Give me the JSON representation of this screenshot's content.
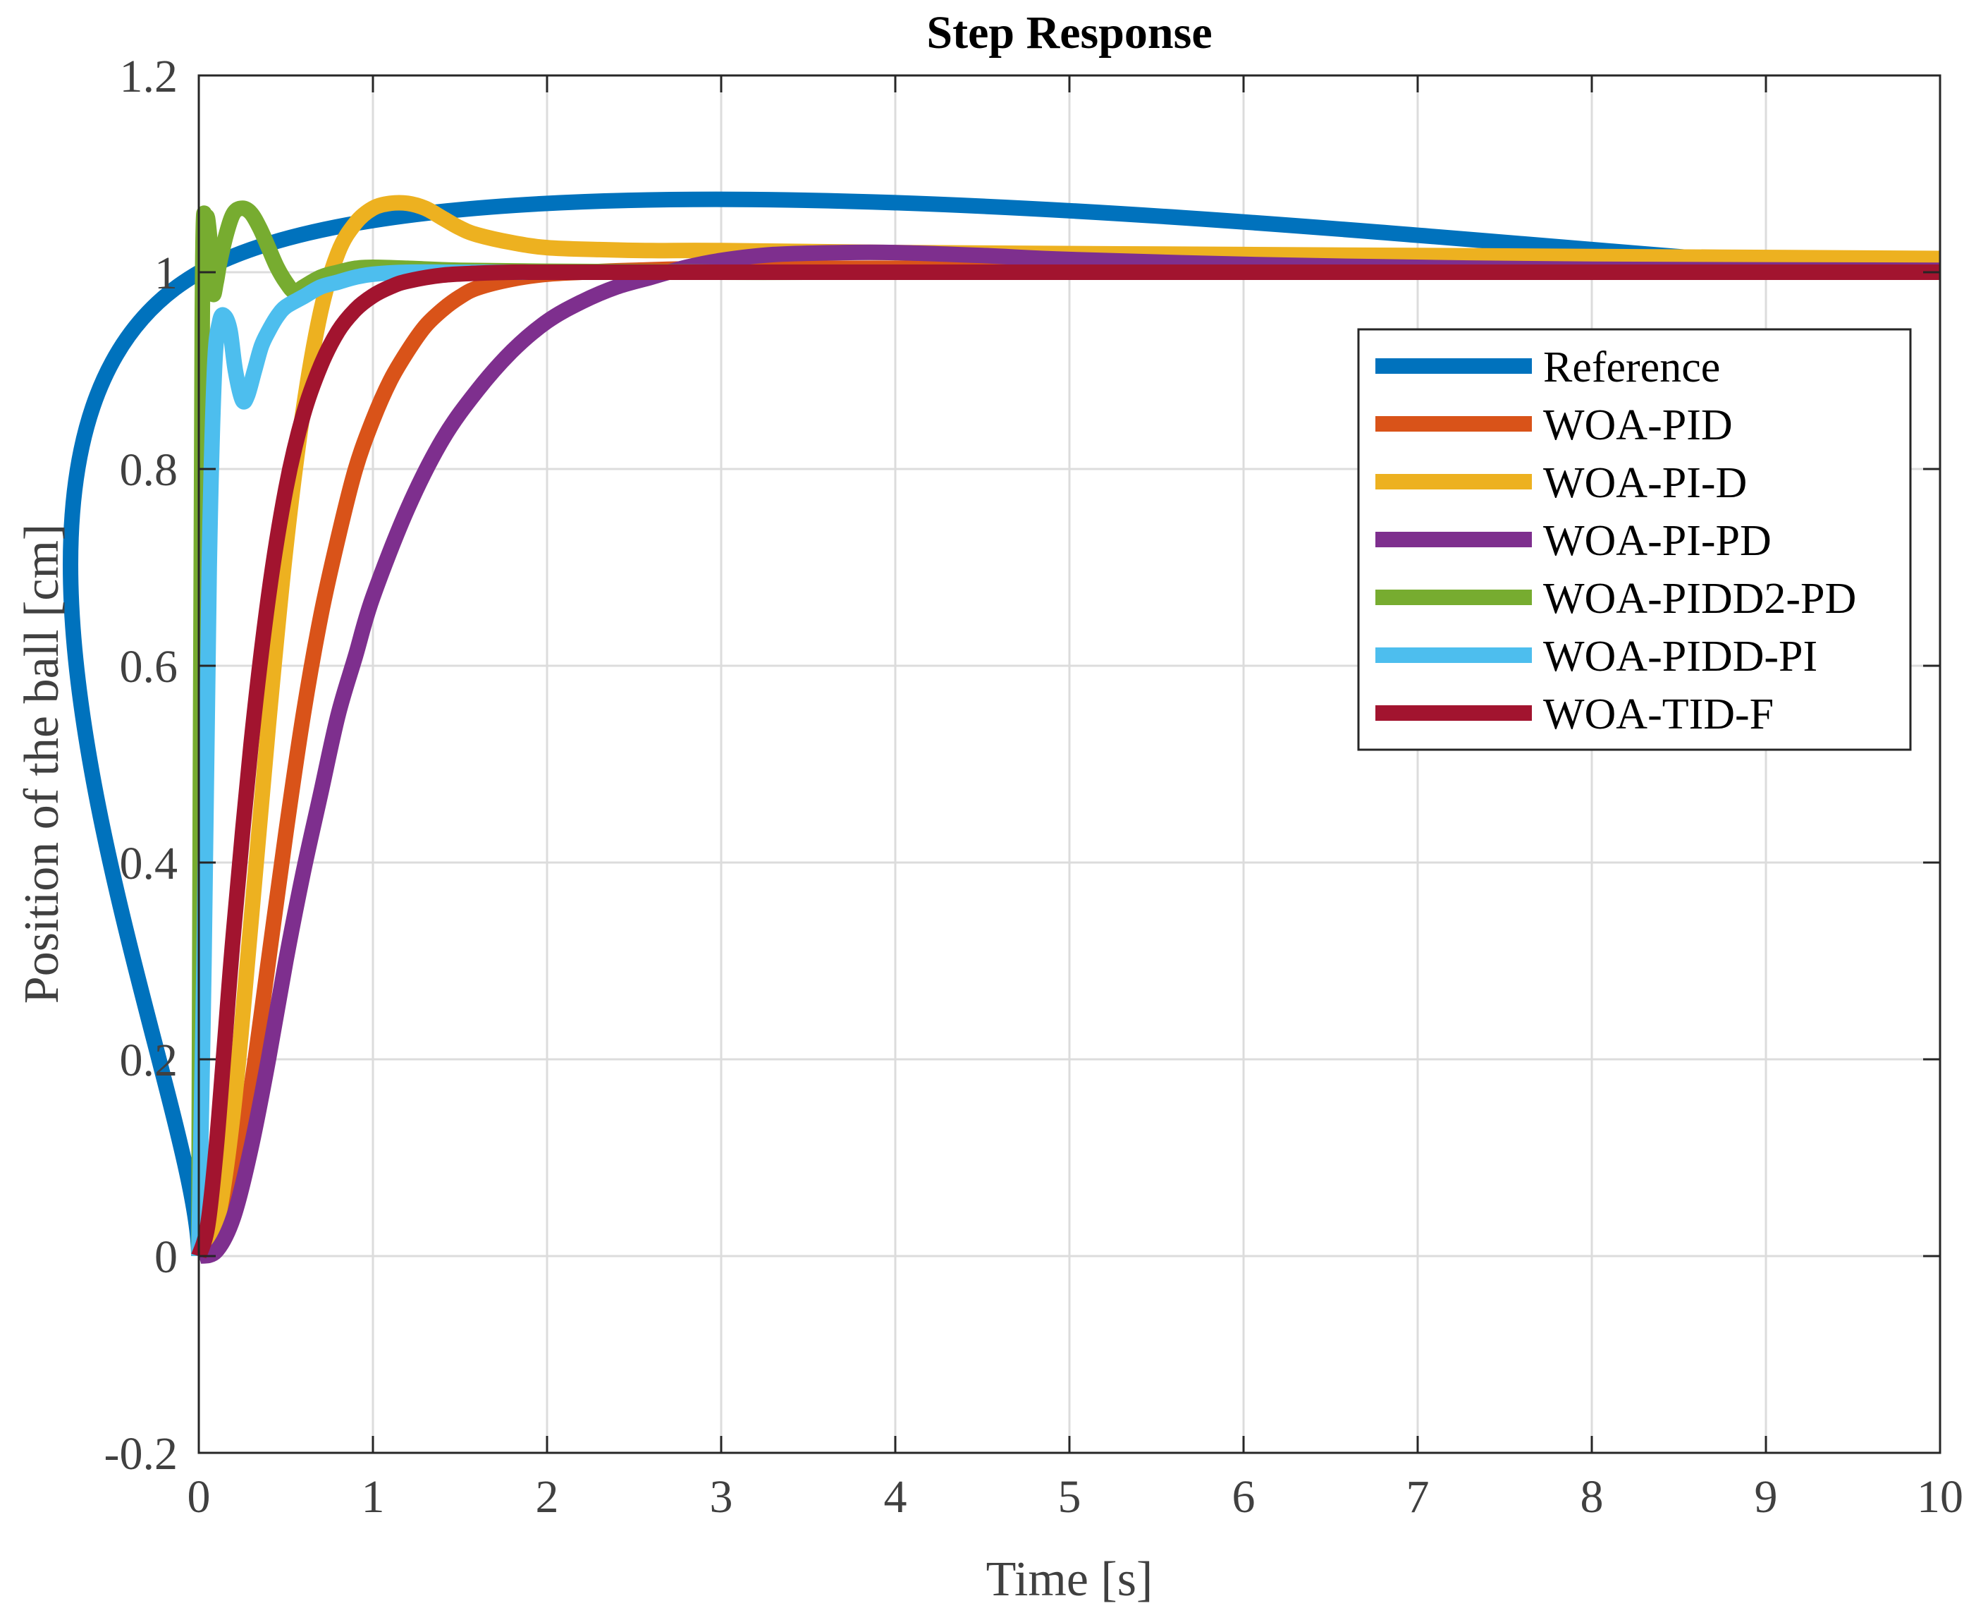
{
  "chart_data": {
    "type": "line",
    "title": "Step Response",
    "xlabel": "Time [s]",
    "ylabel": "Position of the ball [cm]",
    "xlim": [
      0,
      10
    ],
    "ylim": [
      -0.2,
      1.2
    ],
    "xticks": [
      0,
      1,
      2,
      3,
      4,
      5,
      6,
      7,
      8,
      9,
      10
    ],
    "yticks": [
      -0.2,
      0,
      0.2,
      0.4,
      0.6,
      0.8,
      1,
      1.2
    ],
    "xtick_labels": [
      "0",
      "1",
      "2",
      "3",
      "4",
      "5",
      "6",
      "7",
      "8",
      "9",
      "10"
    ],
    "ytick_labels": [
      "-0.2",
      "0",
      "0.2",
      "0.4",
      "0.6",
      "0.8",
      "1",
      "1.2"
    ],
    "grid": true,
    "legend_position": "upper-right",
    "series": [
      {
        "name": "Reference",
        "color": "#0072BD",
        "x": [
          0,
          0.005,
          10
        ],
        "y": [
          0,
          1,
          1
        ]
      },
      {
        "name": "WOA-PID",
        "color": "#D95319",
        "x": [
          0,
          0.1,
          0.2,
          0.3,
          0.4,
          0.5,
          0.6,
          0.7,
          0.8,
          0.9,
          1.0,
          1.1,
          1.2,
          1.3,
          1.4,
          1.5,
          1.6,
          1.8,
          2.0,
          2.2,
          2.5,
          3.0,
          4.0,
          6.0,
          10.0
        ],
        "y": [
          0,
          0.01,
          0.06,
          0.17,
          0.3,
          0.43,
          0.55,
          0.65,
          0.73,
          0.8,
          0.85,
          0.89,
          0.92,
          0.945,
          0.962,
          0.975,
          0.984,
          0.993,
          0.998,
          1.0,
          1.002,
          1.004,
          1.004,
          1.003,
          1.002
        ]
      },
      {
        "name": "WOA-PI-D",
        "color": "#EDB120",
        "x": [
          0,
          0.1,
          0.2,
          0.3,
          0.4,
          0.5,
          0.6,
          0.7,
          0.8,
          0.9,
          1.0,
          1.1,
          1.2,
          1.3,
          1.4,
          1.5,
          1.6,
          1.8,
          2.0,
          2.3,
          2.6,
          3.0,
          4.0,
          6.0,
          8.0,
          10.0
        ],
        "y": [
          0,
          0.03,
          0.15,
          0.34,
          0.54,
          0.72,
          0.86,
          0.96,
          1.02,
          1.05,
          1.065,
          1.07,
          1.07,
          1.065,
          1.055,
          1.045,
          1.038,
          1.03,
          1.025,
          1.023,
          1.022,
          1.022,
          1.02,
          1.018,
          1.016,
          1.014
        ]
      },
      {
        "name": "WOA-PI-PD",
        "color": "#7E2F8E",
        "x": [
          0,
          0.1,
          0.2,
          0.3,
          0.4,
          0.5,
          0.6,
          0.7,
          0.8,
          0.9,
          1.0,
          1.2,
          1.4,
          1.6,
          1.8,
          2.0,
          2.2,
          2.4,
          2.6,
          2.8,
          3.0,
          3.3,
          3.7,
          4.0,
          4.5,
          5.0,
          6.0,
          7.0,
          8.0,
          10.0
        ],
        "y": [
          0,
          0.005,
          0.04,
          0.11,
          0.2,
          0.3,
          0.39,
          0.47,
          0.55,
          0.61,
          0.67,
          0.76,
          0.83,
          0.88,
          0.92,
          0.95,
          0.97,
          0.985,
          0.995,
          1.005,
          1.012,
          1.018,
          1.02,
          1.02,
          1.017,
          1.013,
          1.008,
          1.005,
          1.003,
          1.002
        ]
      },
      {
        "name": "WOA-PIDD2-PD",
        "color": "#77AC30",
        "x": [
          0,
          0.02,
          0.04,
          0.06,
          0.08,
          0.1,
          0.12,
          0.16,
          0.2,
          0.25,
          0.3,
          0.35,
          0.4,
          0.45,
          0.5,
          0.55,
          0.6,
          0.7,
          0.8,
          0.9,
          1.0,
          1.2,
          1.5,
          2.0,
          3.0,
          5.0,
          10.0
        ],
        "y": [
          0,
          0.95,
          1.05,
          1.04,
          0.98,
          0.99,
          1.01,
          1.04,
          1.06,
          1.065,
          1.06,
          1.045,
          1.025,
          1.005,
          0.99,
          0.98,
          0.985,
          0.995,
          1.0,
          1.004,
          1.005,
          1.004,
          1.002,
          1.001,
          1.0,
          1.0,
          1.0
        ]
      },
      {
        "name": "WOA-PIDD-PI",
        "color": "#4DBEEE",
        "x": [
          0,
          0.03,
          0.06,
          0.09,
          0.12,
          0.15,
          0.18,
          0.21,
          0.25,
          0.28,
          0.32,
          0.36,
          0.4,
          0.45,
          0.5,
          0.6,
          0.7,
          0.8,
          0.9,
          1.0,
          1.2,
          1.5,
          2.0,
          3.0,
          10.0
        ],
        "y": [
          0,
          0.3,
          0.7,
          0.9,
          0.95,
          0.955,
          0.94,
          0.9,
          0.87,
          0.875,
          0.9,
          0.925,
          0.94,
          0.955,
          0.965,
          0.975,
          0.985,
          0.99,
          0.995,
          0.998,
          1.0,
          1.0,
          1.0,
          1.0,
          1.0
        ]
      },
      {
        "name": "WOA-TID-F",
        "color": "#A2142F",
        "x": [
          0,
          0.05,
          0.1,
          0.15,
          0.2,
          0.3,
          0.4,
          0.5,
          0.6,
          0.7,
          0.8,
          0.9,
          1.0,
          1.1,
          1.2,
          1.4,
          1.6,
          1.8,
          2.0,
          2.5,
          3.0,
          4.0,
          10.0
        ],
        "y": [
          0,
          0.03,
          0.11,
          0.22,
          0.33,
          0.52,
          0.67,
          0.78,
          0.855,
          0.905,
          0.94,
          0.962,
          0.976,
          0.985,
          0.991,
          0.997,
          0.999,
          1.0,
          1.0,
          1.0,
          1.0,
          1.0,
          1.0
        ]
      }
    ]
  }
}
